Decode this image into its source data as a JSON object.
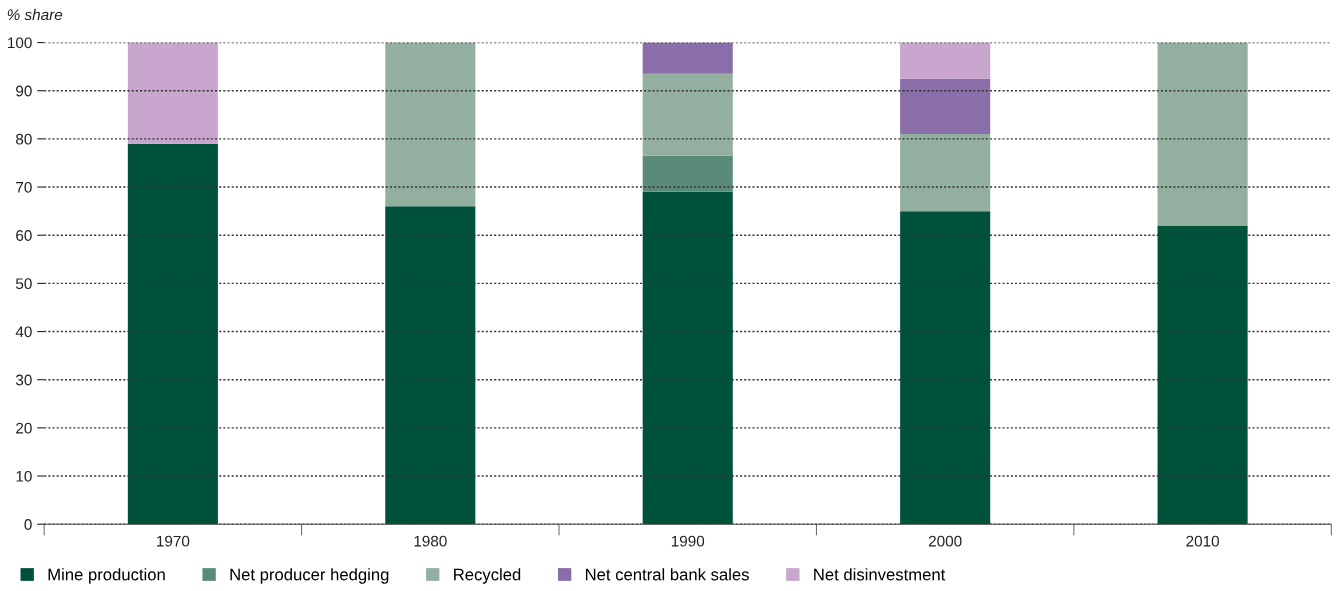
{
  "chart_data": {
    "type": "bar",
    "stacked": true,
    "ylabel": "% share",
    "categories": [
      "1970",
      "1980",
      "1990",
      "2000",
      "2010"
    ],
    "series": [
      {
        "name": "Mine production",
        "color": "#00523b",
        "values": [
          79,
          66,
          69,
          65,
          62
        ]
      },
      {
        "name": "Net producer hedging",
        "color": "#5a8a78",
        "values": [
          null,
          null,
          7.5,
          null,
          null
        ]
      },
      {
        "name": "Recycled",
        "color": "#93afa0",
        "values": [
          null,
          34,
          17,
          16,
          38
        ]
      },
      {
        "name": "Net central bank sales",
        "color": "#8a6eaa",
        "values": [
          null,
          null,
          6.5,
          11.5,
          null
        ]
      },
      {
        "name": "Net disinvestment",
        "color": "#c8a6cd",
        "values": [
          21,
          null,
          null,
          7.5,
          null
        ]
      }
    ],
    "ylim": [
      0,
      100
    ],
    "yticks": [
      0,
      10,
      20,
      30,
      40,
      50,
      60,
      70,
      80,
      90,
      100
    ],
    "grid": "y",
    "legend": "bottom"
  }
}
